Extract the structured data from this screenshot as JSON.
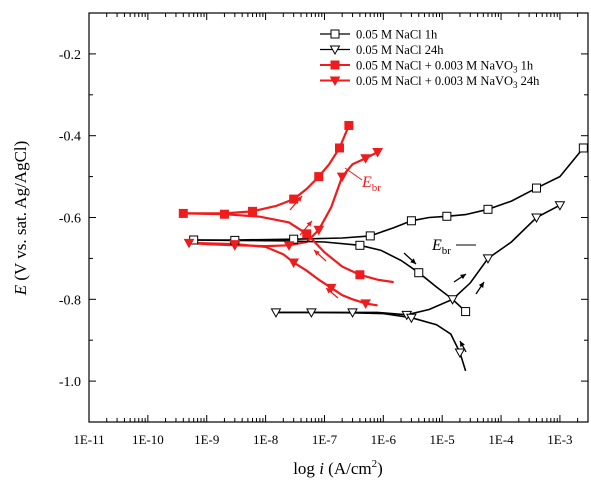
{
  "chart_data": {
    "type": "line",
    "xlabel": "log i (A/cm2)",
    "ylabel": "E (V vs. sat. Ag/AgCl)",
    "x_scale": "log",
    "xlim": [
      1e-11,
      0.003
    ],
    "ylim": [
      -1.1,
      -0.1
    ],
    "x_ticks": [
      {
        "value": 1e-11,
        "label": "1E-11"
      },
      {
        "value": 1e-10,
        "label": "1E-10"
      },
      {
        "value": 1e-09,
        "label": "1E-9"
      },
      {
        "value": 1e-08,
        "label": "1E-8"
      },
      {
        "value": 1e-07,
        "label": "1E-7"
      },
      {
        "value": 1e-06,
        "label": "1E-6"
      },
      {
        "value": 1e-05,
        "label": "1E-5"
      },
      {
        "value": 0.0001,
        "label": "1E-4"
      },
      {
        "value": 0.001,
        "label": "1E-3"
      }
    ],
    "y_ticks": [
      {
        "value": -0.2,
        "label": "-0.2"
      },
      {
        "value": -0.4,
        "label": "-0.4"
      },
      {
        "value": -0.6,
        "label": "-0.6"
      },
      {
        "value": -0.8,
        "label": "-0.8"
      },
      {
        "value": -1.0,
        "label": "-1.0"
      }
    ],
    "grid": false,
    "legend_position": "top-right",
    "series": [
      {
        "name": "0.05 M NaCl 1h",
        "color": "#000000",
        "marker": "square-open",
        "x": [
          6e-10,
          3e-09,
          3e-08,
          2e-07,
          6e-07,
          1.5e-06,
          3e-06,
          6e-06,
          1.2e-05,
          2.5e-05,
          6e-05,
          0.00015,
          0.0004,
          0.001,
          0.0025
        ],
        "y": [
          -0.655,
          -0.655,
          -0.653,
          -0.65,
          -0.645,
          -0.625,
          -0.608,
          -0.6,
          -0.597,
          -0.593,
          -0.58,
          -0.56,
          -0.528,
          -0.5,
          -0.43
        ]
      },
      {
        "name": "0.05 M NaCl 24h",
        "color": "#000000",
        "marker": "triangle-down-open",
        "x": [
          1.5e-08,
          6e-08,
          3e-07,
          8e-07,
          2.5e-06,
          6e-06,
          1.5e-05,
          3e-05,
          6e-05,
          0.00015,
          0.0004,
          0.001
        ],
        "y": [
          -0.832,
          -0.832,
          -0.832,
          -0.832,
          -0.838,
          -0.825,
          -0.8,
          -0.76,
          -0.7,
          -0.66,
          -0.6,
          -0.57
        ]
      },
      {
        "name": "0.05 M NaCl + 0.003 M NaVO3 1h",
        "color": "#ee1c1c",
        "marker": "square-filled",
        "x": [
          4e-10,
          2e-09,
          6e-09,
          1.5e-08,
          3e-08,
          5e-08,
          8e-08,
          1.2e-07,
          1.8e-07,
          2.6e-07
        ],
        "y": [
          -0.59,
          -0.59,
          -0.585,
          -0.572,
          -0.555,
          -0.53,
          -0.5,
          -0.47,
          -0.43,
          -0.375
        ]
      },
      {
        "name": "0.05 M NaCl + 0.003 M NaVO3 24h",
        "color": "#ee1c1c",
        "marker": "triangle-down-filled",
        "x": [
          5e-10,
          1e-09,
          3e-09,
          1e-08,
          2.5e-08,
          5e-08,
          8e-08,
          1.3e-07,
          2e-07,
          3e-07,
          5e-07,
          8e-07
        ],
        "y": [
          -0.662,
          -0.665,
          -0.668,
          -0.67,
          -0.668,
          -0.66,
          -0.63,
          -0.575,
          -0.5,
          -0.47,
          -0.455,
          -0.44
        ]
      }
    ],
    "extra_curves": [
      {
        "color": "#000000",
        "x": [
          6e-10,
          3e-09,
          2e-08,
          1e-07,
          4e-07,
          9e-07,
          2e-06,
          4e-06,
          8e-06,
          1.5e-05,
          2.5e-05
        ],
        "y": [
          -0.655,
          -0.656,
          -0.657,
          -0.66,
          -0.668,
          -0.68,
          -0.705,
          -0.735,
          -0.77,
          -0.8,
          -0.83
        ]
      },
      {
        "color": "#000000",
        "x": [
          1.5e-08,
          6e-08,
          3e-07,
          1e-06,
          3e-06,
          8e-06,
          1.4e-05,
          2e-05,
          2.5e-05
        ],
        "y": [
          -0.832,
          -0.832,
          -0.833,
          -0.835,
          -0.845,
          -0.862,
          -0.885,
          -0.93,
          -0.975
        ]
      },
      {
        "color": "#ee1c1c",
        "x": [
          4e-10,
          2e-09,
          8e-09,
          2.5e-08,
          5e-08,
          1e-07,
          2e-07,
          4e-07,
          8e-07,
          1.5e-06
        ],
        "y": [
          -0.59,
          -0.592,
          -0.598,
          -0.612,
          -0.64,
          -0.685,
          -0.72,
          -0.74,
          -0.752,
          -0.758
        ]
      },
      {
        "color": "#ee1c1c",
        "x": [
          5e-10,
          3e-09,
          1e-08,
          2e-08,
          3e-08,
          5e-08,
          8e-08,
          1.3e-07,
          2e-07,
          3e-07,
          5e-07,
          8e-07
        ],
        "y": [
          -0.662,
          -0.665,
          -0.672,
          -0.69,
          -0.71,
          -0.73,
          -0.752,
          -0.772,
          -0.79,
          -0.8,
          -0.81,
          -0.815
        ]
      }
    ],
    "annotations": [
      {
        "text": "E",
        "subscript": "br",
        "color": "#ee1c1c"
      },
      {
        "text": "E",
        "subscript": "br",
        "color": "#000000"
      }
    ],
    "legend_lines": [
      {
        "prefix": "0.05 M NaCl 1h",
        "sub": "",
        "suffix": ""
      },
      {
        "prefix": "0.05 M NaCl 24h",
        "sub": "",
        "suffix": ""
      },
      {
        "prefix": "0.05 M NaCl + 0.003 M NaVO",
        "sub": "3",
        "suffix": " 1h"
      },
      {
        "prefix": "0.05 M NaCl + 0.003 M NaVO",
        "sub": "3",
        "suffix": " 24h"
      }
    ]
  }
}
